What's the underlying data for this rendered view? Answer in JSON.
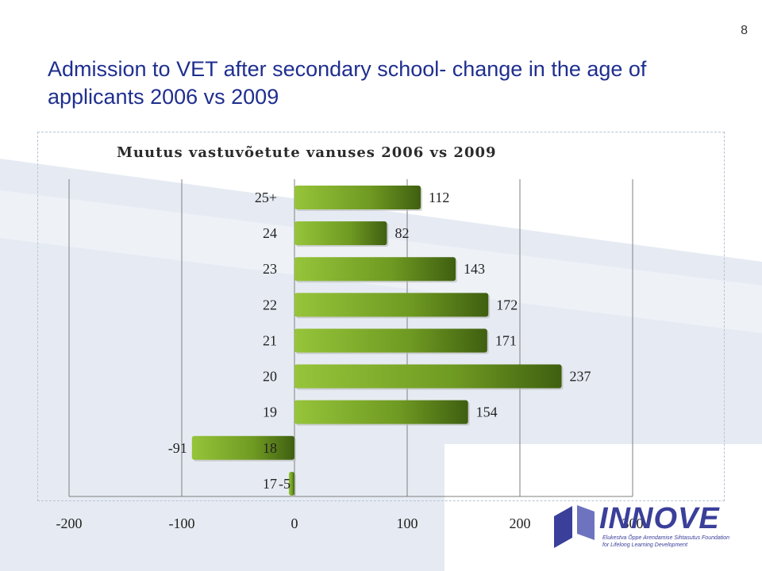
{
  "slide": {
    "number": "8",
    "title": "Admission to VET after secondary school- change in the age of applicants 2006 vs 2009"
  },
  "logo": {
    "name": "INNOVE",
    "tagline": "Elukestva Õppe Arendamise Sihtasutus Foundation for Lifelong Learning Development"
  },
  "colors": {
    "title": "#1f2f8f",
    "bar_light": "#96c43a",
    "bar_dark": "#3f5f10",
    "gridline": "#7f7f7f",
    "logo": "#3a3f9a"
  },
  "chart_data": {
    "type": "bar",
    "orientation": "horizontal",
    "title": "Muutus vastuvõetute vanuses 2006 vs 2009",
    "categories": [
      "25+",
      "24",
      "23",
      "22",
      "21",
      "20",
      "19",
      "18",
      "17"
    ],
    "values": [
      112,
      82,
      143,
      172,
      171,
      237,
      154,
      -91,
      -5
    ],
    "data_labels": [
      "112",
      "82",
      "143",
      "172",
      "171",
      "237",
      "154",
      "-91",
      "-5"
    ],
    "xlim": [
      -200,
      300
    ],
    "xticks": [
      "-200",
      "-100",
      "0",
      "100",
      "200",
      "300"
    ],
    "grid": "vertical major gridlines",
    "legend": "none"
  }
}
